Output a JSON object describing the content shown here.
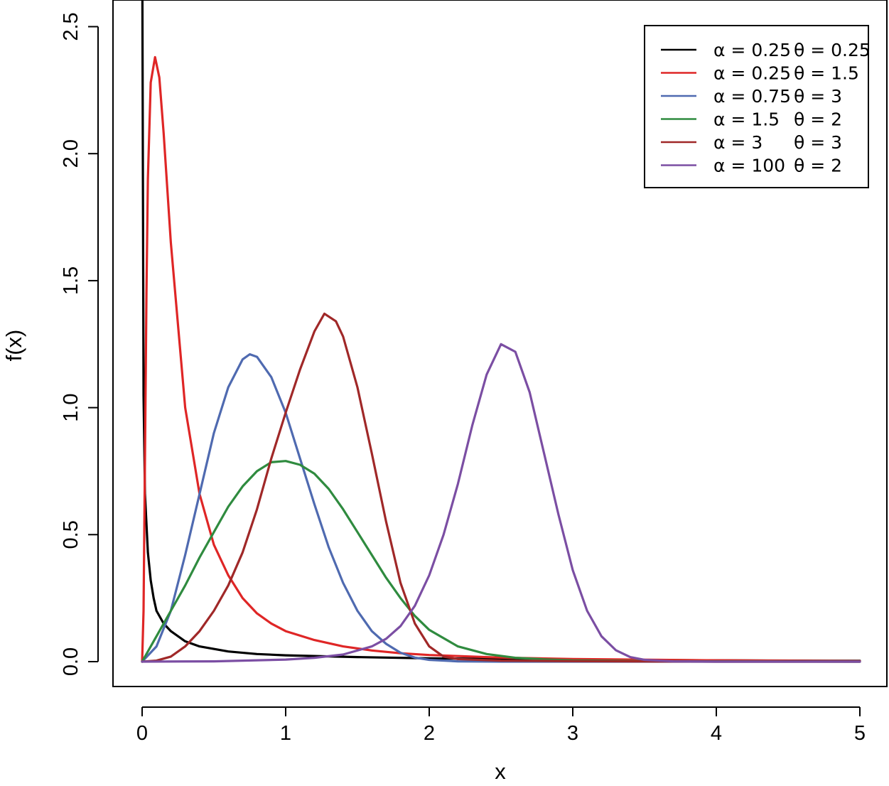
{
  "chart_data": {
    "type": "line",
    "title": "",
    "xlabel": "x",
    "ylabel": "f(x)",
    "xlim": [
      0,
      5
    ],
    "ylim": [
      0,
      2.6
    ],
    "xticks": [
      "0",
      "1",
      "2",
      "3",
      "4",
      "5"
    ],
    "yticks": [
      "0.0",
      "0.5",
      "1.0",
      "1.5",
      "2.0",
      "2.5"
    ],
    "grid": false,
    "legend_position": "top-right",
    "series": [
      {
        "alpha_label": "α = 0.25",
        "theta_label": "θ = 0.25",
        "color": "#000000",
        "alpha": 0.25,
        "theta": 0.25,
        "points": [
          [
            0.002,
            2.6
          ],
          [
            0.005,
            2.0
          ],
          [
            0.01,
            1.05
          ],
          [
            0.02,
            0.66
          ],
          [
            0.04,
            0.43
          ],
          [
            0.06,
            0.32
          ],
          [
            0.08,
            0.25
          ],
          [
            0.1,
            0.2
          ],
          [
            0.15,
            0.15
          ],
          [
            0.2,
            0.12
          ],
          [
            0.3,
            0.08
          ],
          [
            0.4,
            0.06
          ],
          [
            0.6,
            0.04
          ],
          [
            0.8,
            0.03
          ],
          [
            1.0,
            0.025
          ],
          [
            1.5,
            0.018
          ],
          [
            2.0,
            0.013
          ],
          [
            3.0,
            0.008
          ],
          [
            4.0,
            0.005
          ],
          [
            5.0,
            0.003
          ]
        ]
      },
      {
        "alpha_label": "α = 0.25",
        "theta_label": "θ = 1.5",
        "color": "#df2626",
        "alpha": 0.25,
        "theta": 1.5,
        "points": [
          [
            0.0,
            0.0
          ],
          [
            0.01,
            0.2
          ],
          [
            0.02,
            0.8
          ],
          [
            0.03,
            1.45
          ],
          [
            0.04,
            1.9
          ],
          [
            0.06,
            2.28
          ],
          [
            0.09,
            2.38
          ],
          [
            0.12,
            2.3
          ],
          [
            0.15,
            2.08
          ],
          [
            0.2,
            1.65
          ],
          [
            0.3,
            1.0
          ],
          [
            0.4,
            0.66
          ],
          [
            0.5,
            0.46
          ],
          [
            0.6,
            0.34
          ],
          [
            0.7,
            0.25
          ],
          [
            0.8,
            0.19
          ],
          [
            0.9,
            0.15
          ],
          [
            1.0,
            0.12
          ],
          [
            1.2,
            0.085
          ],
          [
            1.4,
            0.06
          ],
          [
            1.6,
            0.044
          ],
          [
            1.8,
            0.033
          ],
          [
            2.0,
            0.026
          ],
          [
            2.5,
            0.016
          ],
          [
            3.0,
            0.01
          ],
          [
            4.0,
            0.005
          ],
          [
            5.0,
            0.002
          ]
        ]
      },
      {
        "alpha_label": "α = 0.75",
        "theta_label": "θ = 3",
        "color": "#4f6ab0",
        "alpha": 0.75,
        "theta": 3,
        "points": [
          [
            0.0,
            0.0
          ],
          [
            0.1,
            0.06
          ],
          [
            0.2,
            0.2
          ],
          [
            0.3,
            0.42
          ],
          [
            0.4,
            0.66
          ],
          [
            0.5,
            0.9
          ],
          [
            0.6,
            1.08
          ],
          [
            0.7,
            1.19
          ],
          [
            0.75,
            1.21
          ],
          [
            0.8,
            1.2
          ],
          [
            0.9,
            1.12
          ],
          [
            1.0,
            0.98
          ],
          [
            1.1,
            0.8
          ],
          [
            1.2,
            0.62
          ],
          [
            1.3,
            0.45
          ],
          [
            1.4,
            0.31
          ],
          [
            1.5,
            0.2
          ],
          [
            1.6,
            0.12
          ],
          [
            1.7,
            0.07
          ],
          [
            1.8,
            0.035
          ],
          [
            1.9,
            0.016
          ],
          [
            2.0,
            0.007
          ],
          [
            2.2,
            0.001
          ],
          [
            2.5,
            0.0
          ],
          [
            5.0,
            0.0
          ]
        ]
      },
      {
        "alpha_label": "α = 1.5",
        "theta_label": "θ = 2",
        "color": "#2f8b3f",
        "alpha": 1.5,
        "theta": 2,
        "points": [
          [
            0.0,
            0.0
          ],
          [
            0.1,
            0.1
          ],
          [
            0.2,
            0.2
          ],
          [
            0.3,
            0.3
          ],
          [
            0.4,
            0.41
          ],
          [
            0.5,
            0.51
          ],
          [
            0.6,
            0.61
          ],
          [
            0.7,
            0.69
          ],
          [
            0.8,
            0.75
          ],
          [
            0.9,
            0.785
          ],
          [
            1.0,
            0.79
          ],
          [
            1.1,
            0.775
          ],
          [
            1.2,
            0.74
          ],
          [
            1.3,
            0.68
          ],
          [
            1.4,
            0.6
          ],
          [
            1.5,
            0.51
          ],
          [
            1.6,
            0.42
          ],
          [
            1.7,
            0.33
          ],
          [
            1.8,
            0.25
          ],
          [
            1.9,
            0.18
          ],
          [
            2.0,
            0.125
          ],
          [
            2.2,
            0.06
          ],
          [
            2.4,
            0.03
          ],
          [
            2.6,
            0.015
          ],
          [
            2.8,
            0.009
          ],
          [
            3.0,
            0.005
          ],
          [
            3.5,
            0.002
          ],
          [
            4.0,
            0.001
          ],
          [
            5.0,
            0.0
          ]
        ]
      },
      {
        "alpha_label": "α = 3",
        "theta_label": "θ = 3",
        "color": "#a02828",
        "alpha": 3,
        "theta": 3,
        "points": [
          [
            0.0,
            0.0
          ],
          [
            0.1,
            0.004
          ],
          [
            0.2,
            0.02
          ],
          [
            0.3,
            0.06
          ],
          [
            0.4,
            0.12
          ],
          [
            0.5,
            0.2
          ],
          [
            0.6,
            0.3
          ],
          [
            0.7,
            0.43
          ],
          [
            0.8,
            0.6
          ],
          [
            0.9,
            0.8
          ],
          [
            1.0,
            0.98
          ],
          [
            1.1,
            1.15
          ],
          [
            1.2,
            1.3
          ],
          [
            1.27,
            1.37
          ],
          [
            1.35,
            1.34
          ],
          [
            1.4,
            1.28
          ],
          [
            1.5,
            1.08
          ],
          [
            1.6,
            0.82
          ],
          [
            1.7,
            0.55
          ],
          [
            1.8,
            0.31
          ],
          [
            1.9,
            0.15
          ],
          [
            2.0,
            0.06
          ],
          [
            2.1,
            0.02
          ],
          [
            2.2,
            0.01
          ],
          [
            2.5,
            0.004
          ],
          [
            3.0,
            0.002
          ],
          [
            4.0,
            0.0
          ],
          [
            5.0,
            0.0
          ]
        ]
      },
      {
        "alpha_label": "α = 100",
        "theta_label": "θ = 2",
        "color": "#7b4ea3",
        "alpha": 100,
        "theta": 2,
        "points": [
          [
            0.0,
            0.0
          ],
          [
            0.5,
            0.001
          ],
          [
            1.0,
            0.008
          ],
          [
            1.2,
            0.015
          ],
          [
            1.4,
            0.028
          ],
          [
            1.6,
            0.06
          ],
          [
            1.7,
            0.09
          ],
          [
            1.8,
            0.14
          ],
          [
            1.9,
            0.22
          ],
          [
            2.0,
            0.34
          ],
          [
            2.1,
            0.5
          ],
          [
            2.2,
            0.7
          ],
          [
            2.3,
            0.93
          ],
          [
            2.4,
            1.13
          ],
          [
            2.5,
            1.25
          ],
          [
            2.6,
            1.22
          ],
          [
            2.7,
            1.06
          ],
          [
            2.8,
            0.82
          ],
          [
            2.9,
            0.58
          ],
          [
            3.0,
            0.36
          ],
          [
            3.1,
            0.2
          ],
          [
            3.2,
            0.1
          ],
          [
            3.3,
            0.045
          ],
          [
            3.4,
            0.018
          ],
          [
            3.5,
            0.007
          ],
          [
            3.7,
            0.001
          ],
          [
            4.0,
            0.0
          ],
          [
            5.0,
            0.0
          ]
        ]
      }
    ]
  }
}
